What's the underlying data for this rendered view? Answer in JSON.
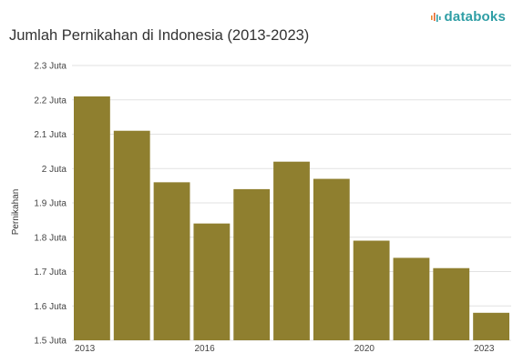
{
  "brand": {
    "name": "databoks",
    "color": "#2f9ea5",
    "icon": "signal-wave-icon"
  },
  "chart_data": {
    "type": "bar",
    "title": "Jumlah Pernikahan di Indonesia (2013-2023)",
    "xlabel": "",
    "ylabel": "Pernikahan",
    "categories": [
      "2013",
      "2014",
      "2015",
      "2016",
      "2017",
      "2018",
      "2019",
      "2020",
      "2021",
      "2022",
      "2023"
    ],
    "x_tick_labels": [
      "2013",
      "2016",
      "2020",
      "2023"
    ],
    "series": [
      {
        "values": [
          2.21,
          2.11,
          1.96,
          1.84,
          1.94,
          2.02,
          1.97,
          1.79,
          1.74,
          1.71,
          1.58
        ],
        "color": "#8f7f2f"
      }
    ],
    "unit": "Juta",
    "ylim": [
      1.5,
      2.3
    ],
    "y_ticks": [
      "1.5 Juta",
      "1.6 Juta",
      "1.7 Juta",
      "1.8 Juta",
      "1.9 Juta",
      "2 Juta",
      "2.1 Juta",
      "2.2 Juta",
      "2.3 Juta"
    ],
    "y_tick_values": [
      1.5,
      1.6,
      1.7,
      1.8,
      1.9,
      2.0,
      2.1,
      2.2,
      2.3
    ],
    "grid": true
  }
}
